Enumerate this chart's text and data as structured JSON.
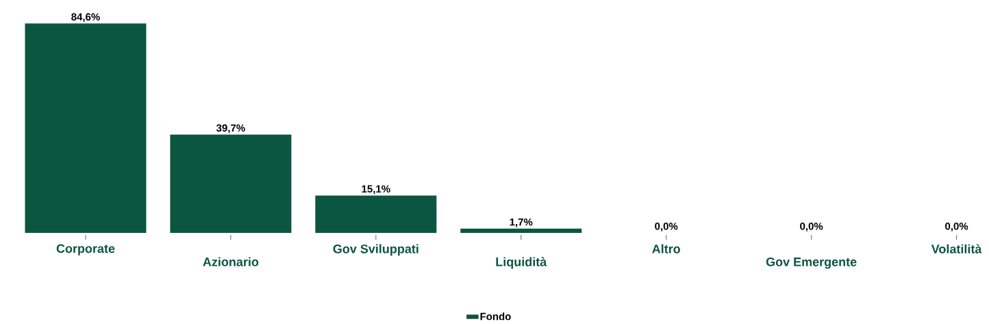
{
  "chart_data": {
    "type": "bar",
    "categories": [
      "Corporate",
      "Azionario",
      "Gov Sviluppati",
      "Liquidità",
      "Altro",
      "Gov Emergente",
      "Volatilità"
    ],
    "series": [
      {
        "name": "Fondo",
        "color": "#0b5640",
        "values": [
          84.6,
          39.7,
          15.1,
          1.7,
          0.0,
          0.0,
          0.0
        ],
        "value_labels": [
          "84,6%",
          "39,7%",
          "15,1%",
          "1,7%",
          "0,0%",
          "0,0%",
          "0,0%"
        ]
      }
    ],
    "legend": "bottom"
  }
}
